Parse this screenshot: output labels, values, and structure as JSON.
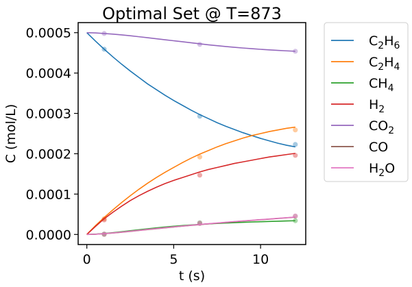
{
  "chart_data": {
    "type": "line",
    "title": "Optimal Set @ T=873",
    "xlabel": "t (s)",
    "ylabel": "C (mol/L)",
    "xlim": [
      -0.5,
      12.6
    ],
    "ylim": [
      -2.5e-05,
      0.000525
    ],
    "xticks": [
      0,
      5,
      10
    ],
    "xtick_labels": [
      "0",
      "5",
      "10"
    ],
    "yticks": [
      0,
      0.0001,
      0.0002,
      0.0003,
      0.0004,
      0.0005
    ],
    "ytick_labels": [
      "0.0000",
      "0.0001",
      "0.0002",
      "0.0003",
      "0.0004",
      "0.0005"
    ],
    "grid": false,
    "legend_position": "outside-right",
    "series": [
      {
        "name_parts": [
          [
            "C",
            false
          ],
          [
            "2",
            true
          ],
          [
            "H",
            false
          ],
          [
            "6",
            true
          ]
        ],
        "color": "#1f77b4",
        "line_x": [
          0,
          0.5,
          1,
          1.5,
          2,
          2.5,
          3,
          3.5,
          4,
          4.5,
          5,
          5.5,
          6,
          6.5,
          7,
          7.5,
          8,
          8.5,
          9,
          9.5,
          10,
          10.5,
          11,
          11.5,
          12
        ],
        "line_y": [
          0.0005,
          0.000479,
          0.000459,
          0.00044,
          0.000422,
          0.000405,
          0.000389,
          0.000373,
          0.000359,
          0.000345,
          0.000332,
          0.00032,
          0.000308,
          0.000297,
          0.000287,
          0.000277,
          0.000268,
          0.00026,
          0.000252,
          0.000245,
          0.000238,
          0.000232,
          0.000226,
          0.000221,
          0.000217
        ],
        "points_x": [
          1,
          6.5,
          12
        ],
        "points_y": [
          0.000459,
          0.000293,
          0.000223
        ]
      },
      {
        "name_parts": [
          [
            "C",
            false
          ],
          [
            "2",
            true
          ],
          [
            "H",
            false
          ],
          [
            "4",
            true
          ]
        ],
        "color": "#ff7f0e",
        "line_x": [
          0,
          0.5,
          1,
          1.5,
          2,
          2.5,
          3,
          3.5,
          4,
          4.5,
          5,
          5.5,
          6,
          6.5,
          7,
          7.5,
          8,
          8.5,
          9,
          9.5,
          10,
          10.5,
          11,
          11.5,
          12
        ],
        "line_y": [
          0,
          2.2e-05,
          4.2e-05,
          6.1e-05,
          7.9e-05,
          9.6e-05,
          0.000112,
          0.000127,
          0.000141,
          0.000154,
          0.000166,
          0.000178,
          0.000189,
          0.000199,
          0.000208,
          0.000217,
          0.000225,
          0.000232,
          0.000239,
          0.000245,
          0.00025,
          0.000255,
          0.000259,
          0.000263,
          0.000266
        ],
        "points_x": [
          1,
          6.5,
          12
        ],
        "points_y": [
          3.9e-05,
          0.000192,
          0.000259
        ]
      },
      {
        "name_parts": [
          [
            "CH",
            false
          ],
          [
            "4",
            true
          ]
        ],
        "color": "#2ca02c",
        "line_x": [
          0,
          0.5,
          1,
          1.5,
          2,
          2.5,
          3,
          3.5,
          4,
          4.5,
          5,
          5.5,
          6,
          6.5,
          7,
          7.5,
          8,
          8.5,
          9,
          9.5,
          10,
          10.5,
          11,
          11.5,
          12
        ],
        "line_y": [
          0,
          8e-07,
          2.5e-06,
          4.5e-06,
          6.8e-06,
          9.2e-06,
          1.16e-05,
          1.4e-05,
          1.63e-05,
          1.84e-05,
          2.03e-05,
          2.2e-05,
          2.36e-05,
          2.5e-05,
          2.62e-05,
          2.73e-05,
          2.83e-05,
          2.92e-05,
          3e-05,
          3.08e-05,
          3.15e-05,
          3.22e-05,
          3.28e-05,
          3.34e-05,
          3.4e-05
        ],
        "points_x": [
          1,
          6.5,
          12
        ],
        "points_y": [
          1e-06,
          2.9e-05,
          3.4e-05
        ]
      },
      {
        "name_parts": [
          [
            "H",
            false
          ],
          [
            "2",
            true
          ]
        ],
        "color": "#d62728",
        "line_x": [
          0,
          0.5,
          1,
          1.5,
          2,
          2.5,
          3,
          3.5,
          4,
          4.5,
          5,
          5.5,
          6,
          6.5,
          7,
          7.5,
          8,
          8.5,
          9,
          9.5,
          10,
          10.5,
          11,
          11.5,
          12
        ],
        "line_y": [
          0,
          2e-05,
          3.9e-05,
          5.5e-05,
          7e-05,
          8.4e-05,
          9.6e-05,
          0.000107,
          0.000117,
          0.000126,
          0.000134,
          0.000141,
          0.000148,
          0.000155,
          0.000161,
          0.000166,
          0.000171,
          0.000176,
          0.00018,
          0.000184,
          0.000188,
          0.000192,
          0.000195,
          0.000198,
          0.000201
        ],
        "points_x": [
          1,
          6.5,
          12
        ],
        "points_y": [
          3.6e-05,
          0.000147,
          0.000196
        ]
      },
      {
        "name_parts": [
          [
            "CO",
            false
          ],
          [
            "2",
            true
          ]
        ],
        "color": "#9467bd",
        "line_x": [
          0,
          0.5,
          1,
          1.5,
          2,
          2.5,
          3,
          3.5,
          4,
          4.5,
          5,
          5.5,
          6,
          6.5,
          7,
          7.5,
          8,
          8.5,
          9,
          9.5,
          10,
          10.5,
          11,
          11.5,
          12
        ],
        "line_y": [
          0.0005,
          0.0004995,
          0.000498,
          0.0004965,
          0.0004945,
          0.0004925,
          0.00049,
          0.0004875,
          0.000485,
          0.0004825,
          0.00048,
          0.0004775,
          0.000475,
          0.0004725,
          0.00047,
          0.0004678,
          0.0004657,
          0.0004638,
          0.000462,
          0.0004603,
          0.0004588,
          0.0004574,
          0.0004561,
          0.000455,
          0.000454
        ],
        "points_x": [
          1,
          6.5,
          12
        ],
        "points_y": [
          0.000498,
          0.000471,
          0.000454
        ]
      },
      {
        "name_parts": [
          [
            "CO",
            false
          ]
        ],
        "color": "#8c564b",
        "line_x": [
          0,
          0.5,
          1,
          1.5,
          2,
          2.5,
          3,
          3.5,
          4,
          4.5,
          5,
          5.5,
          6,
          6.5,
          7,
          7.5,
          8,
          8.5,
          9,
          9.5,
          10,
          10.5,
          11,
          11.5,
          12
        ],
        "line_y": [
          0,
          5e-07,
          1.8e-06,
          3.5e-06,
          5.5e-06,
          7.6e-06,
          9.8e-06,
          1.2e-05,
          1.42e-05,
          1.63e-05,
          1.84e-05,
          2.04e-05,
          2.24e-05,
          2.43e-05,
          2.62e-05,
          2.8e-05,
          2.98e-05,
          3.15e-05,
          3.32e-05,
          3.48e-05,
          3.64e-05,
          3.8e-05,
          3.96e-05,
          4.12e-05,
          4.28e-05
        ],
        "points_x": [
          1,
          6.5,
          12
        ],
        "points_y": [
          0,
          2.7e-05,
          4.5e-05
        ]
      },
      {
        "name_parts": [
          [
            "H",
            false
          ],
          [
            "2",
            true
          ],
          [
            "O",
            false
          ]
        ],
        "color": "#e377c2",
        "line_x": [
          0,
          0.5,
          1,
          1.5,
          2,
          2.5,
          3,
          3.5,
          4,
          4.5,
          5,
          5.5,
          6,
          6.5,
          7,
          7.5,
          8,
          8.5,
          9,
          9.5,
          10,
          10.5,
          11,
          11.5,
          12
        ],
        "line_y": [
          0,
          6e-07,
          2e-06,
          3.8e-06,
          5.8e-06,
          8e-06,
          1.02e-05,
          1.24e-05,
          1.46e-05,
          1.67e-05,
          1.88e-05,
          2.08e-05,
          2.28e-05,
          2.47e-05,
          2.66e-05,
          2.84e-05,
          3.02e-05,
          3.19e-05,
          3.36e-05,
          3.52e-05,
          3.68e-05,
          3.84e-05,
          4e-05,
          4.16e-05,
          4.32e-05
        ],
        "points_x": [
          1,
          6.5,
          12
        ],
        "points_y": [
          1e-06,
          2.8e-05,
          4.6e-05
        ]
      }
    ]
  }
}
